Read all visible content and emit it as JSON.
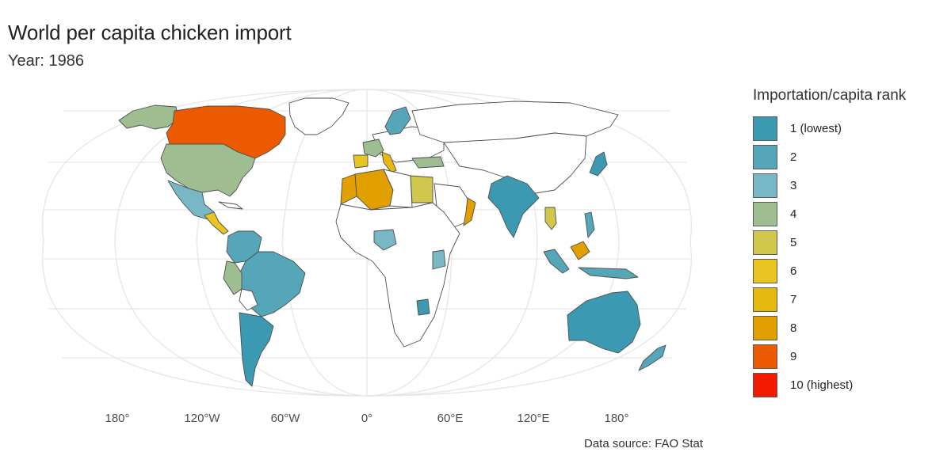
{
  "title": "World per capita chicken import",
  "subtitle": "Year: 1986",
  "caption": "Data source: FAO Stat",
  "x_axis_ticks": [
    "180°",
    "120°W",
    "60°W",
    "0°",
    "60°E",
    "120°E",
    "180°"
  ],
  "legend": {
    "title": "Importation/capita rank",
    "items": [
      {
        "label": "1 (lowest)",
        "color": "#3b9ab2"
      },
      {
        "label": "2",
        "color": "#56a6ba"
      },
      {
        "label": "3",
        "color": "#78b7c5"
      },
      {
        "label": "4",
        "color": "#9ebe91"
      },
      {
        "label": "5",
        "color": "#d1c74c"
      },
      {
        "label": "6",
        "color": "#e8c520"
      },
      {
        "label": "7",
        "color": "#e4b80e"
      },
      {
        "label": "8",
        "color": "#e1a000"
      },
      {
        "label": "9",
        "color": "#ec5a00"
      },
      {
        "label": "10 (highest)",
        "color": "#f21a00"
      }
    ]
  },
  "colors": {
    "unranked": "#ffffff",
    "border": "#4d4d4d",
    "graticule": "#e6e6e6"
  }
}
